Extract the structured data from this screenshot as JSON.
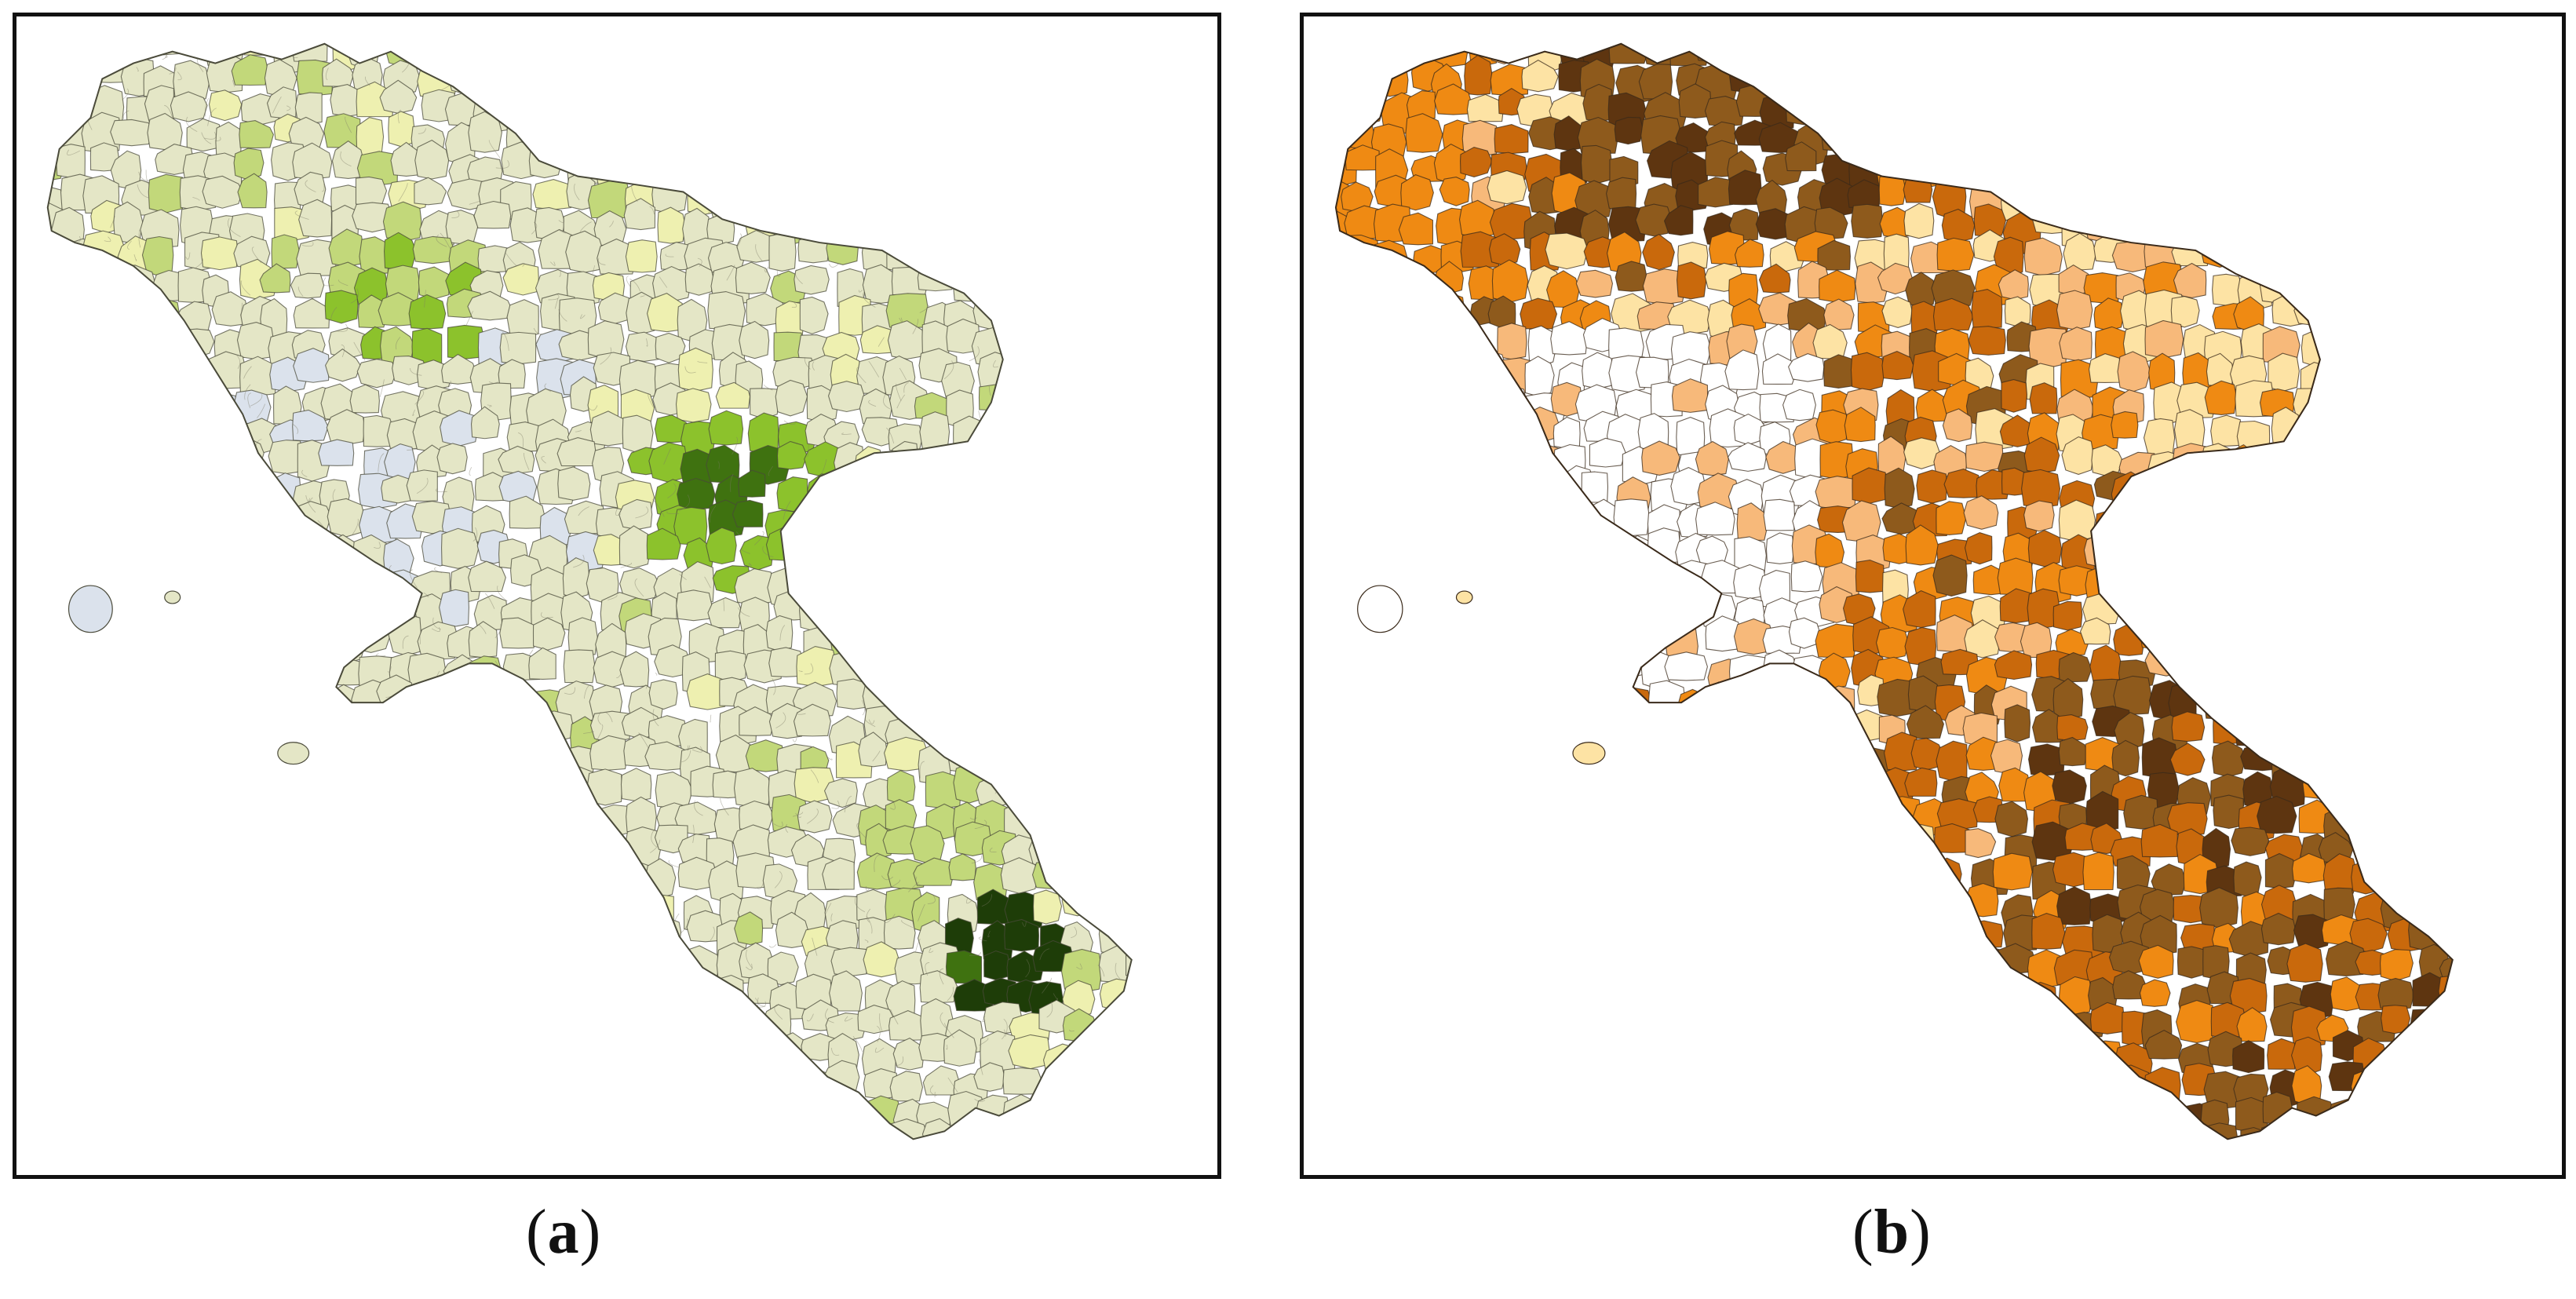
{
  "panels": [
    {
      "id": "a",
      "caption_open": "(",
      "caption_letter": "a",
      "caption_close": ")",
      "colors": {
        "base": "#e4e6c6",
        "outline": "#4a4a3a",
        "light_green": "#c2d87a",
        "mid_green": "#8cc22c",
        "dark_green": "#3f7210",
        "darkest_green": "#1e3d08",
        "pale_yellow": "#eef0b0",
        "urban_blue": "#dbe2ec"
      }
    },
    {
      "id": "b",
      "caption_open": "(",
      "caption_letter": "b",
      "caption_close": ")",
      "colors": {
        "none": "#ffffff",
        "pale": "#fde3a4",
        "light": "#f7b97a",
        "orange": "#ef8a13",
        "dark_orange": "#c9690c",
        "brown": "#8e5a1c",
        "dark_brown": "#5e3510",
        "outline": "#3a2a1a"
      }
    }
  ]
}
